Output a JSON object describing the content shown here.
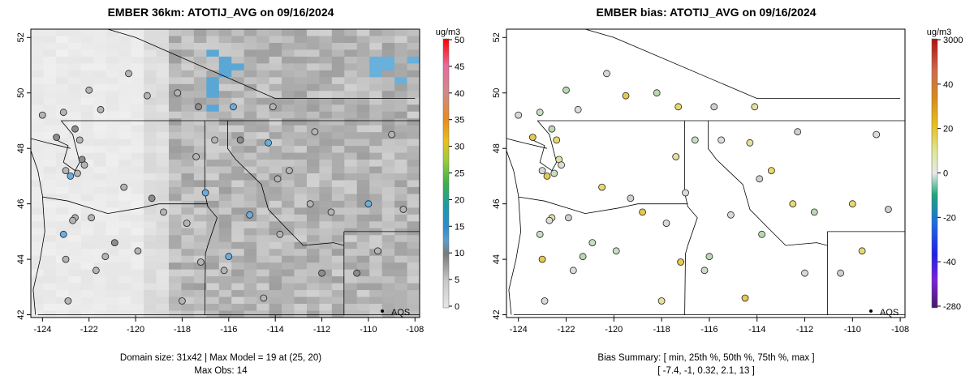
{
  "chart_data": [
    {
      "type": "map",
      "title": "EMBER 36km: ATOTIJ_AVG on 09/16/2024",
      "xlim": [
        -124.5,
        -107.8
      ],
      "ylim": [
        41.9,
        52.3
      ],
      "x_ticks": [
        -124,
        -122,
        -120,
        -118,
        -116,
        -114,
        -112,
        -110,
        -108
      ],
      "y_ticks": [
        42,
        44,
        46,
        48,
        50,
        52
      ],
      "colorbar": {
        "title": "ug/m3",
        "ticks": [
          "0",
          "5",
          "10",
          "15",
          "20",
          "25",
          "30",
          "35",
          "40",
          "45",
          "50"
        ],
        "range": [
          0,
          50
        ]
      },
      "legend_marker": "AQS",
      "footer_line1": "Domain size: 31x42 | Max Model = 19 at (25, 20)",
      "footer_line2": "Max Obs: 14"
    },
    {
      "type": "map",
      "title": "EMBER bias: ATOTIJ_AVG on 09/16/2024",
      "xlim": [
        -124.5,
        -107.8
      ],
      "ylim": [
        41.9,
        52.3
      ],
      "x_ticks": [
        -124,
        -122,
        -120,
        -118,
        -116,
        -114,
        -112,
        -110,
        -108
      ],
      "y_ticks": [
        42,
        44,
        46,
        48,
        50,
        52
      ],
      "colorbar": {
        "title": "ug/m3",
        "ticks": [
          "3000",
          "40",
          "20",
          "0",
          "-20",
          "-40",
          "-280"
        ]
      },
      "legend_marker": "AQS",
      "footer_line1": "Bias Summary: [ min, 25th %, 50th %, 75th %, max ]",
      "footer_line2": "[ -7.4,   -1,   0.32,   2.1,   13 ]",
      "bias_summary": {
        "min": -7.4,
        "p25": -1,
        "p50": 0.32,
        "p75": 2.1,
        "max": 13
      }
    }
  ]
}
